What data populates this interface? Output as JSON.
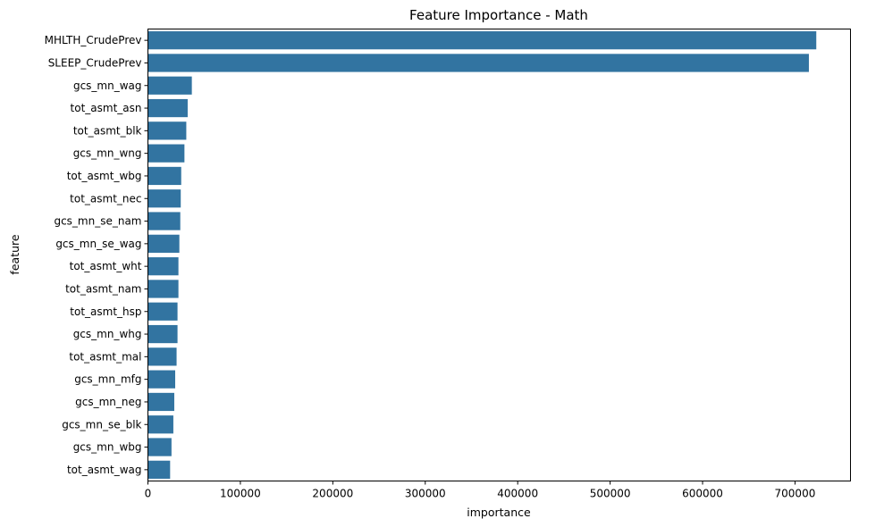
{
  "chart_data": {
    "type": "bar",
    "orientation": "horizontal",
    "title": "Feature Importance - Math",
    "xlabel": "importance",
    "ylabel": "feature",
    "xlim": [
      0,
      760000
    ],
    "xticks": [
      0,
      100000,
      200000,
      300000,
      400000,
      500000,
      600000,
      700000
    ],
    "xtick_labels": [
      "0",
      "100000",
      "200000",
      "300000",
      "400000",
      "500000",
      "600000",
      "700000"
    ],
    "grid": false,
    "bar_color": "#3274a1",
    "categories": [
      "MHLTH_CrudePrev",
      "SLEEP_CrudePrev",
      "gcs_mn_wag",
      "tot_asmt_asn",
      "tot_asmt_blk",
      "gcs_mn_wng",
      "tot_asmt_wbg",
      "tot_asmt_nec",
      "gcs_mn_se_nam",
      "gcs_mn_se_wag",
      "tot_asmt_wht",
      "tot_asmt_nam",
      "tot_asmt_hsp",
      "gcs_mn_whg",
      "tot_asmt_mal",
      "gcs_mn_mfg",
      "gcs_mn_neg",
      "gcs_mn_se_blk",
      "gcs_mn_wbg",
      "tot_asmt_wag"
    ],
    "values": [
      723000,
      715000,
      47500,
      43000,
      41500,
      39500,
      36000,
      35500,
      35000,
      34000,
      33000,
      33000,
      32000,
      32000,
      31000,
      29500,
      28500,
      27500,
      25500,
      24000
    ]
  }
}
